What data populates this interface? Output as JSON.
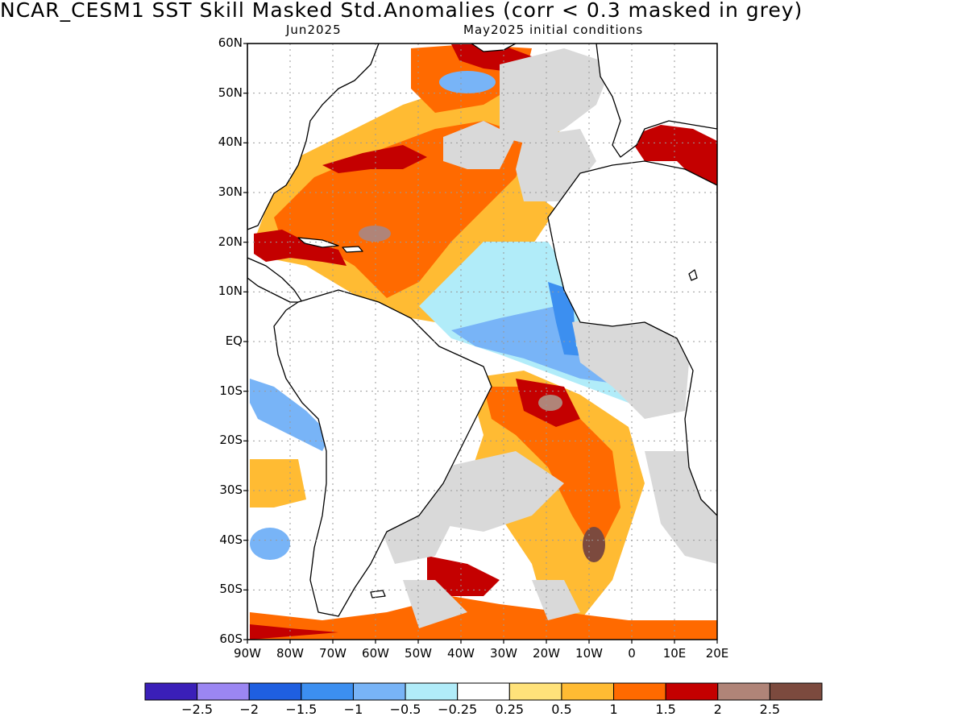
{
  "header": {
    "title": "NCAR_CESM1   SST Skill Masked Std.Anomalies (corr < 0.3 masked in grey)",
    "subtitle_left": "Jun2025",
    "subtitle_right": "May2025 initial conditions"
  },
  "axes": {
    "lat_labels": [
      "60N",
      "50N",
      "40N",
      "30N",
      "20N",
      "10N",
      "EQ",
      "10S",
      "20S",
      "30S",
      "40S",
      "50S",
      "60S"
    ],
    "lon_labels": [
      "90W",
      "80W",
      "70W",
      "60W",
      "50W",
      "40W",
      "30W",
      "20W",
      "10W",
      "0",
      "10E",
      "20E"
    ]
  },
  "colorbar": {
    "colors": [
      "#3a1fb8",
      "#9b86f2",
      "#1f5fe0",
      "#3c8ff0",
      "#78b4f7",
      "#b1ecf9",
      "#ffffff",
      "#ffe27a",
      "#ffbb33",
      "#ff6a00",
      "#c40000",
      "#b08478",
      "#7c4a3e"
    ],
    "labels": [
      "-2.5",
      "-2",
      "-1.5",
      "-1",
      "-0.5",
      "-0.25",
      "0.25",
      "0.5",
      "1",
      "1.5",
      "2",
      "2.5"
    ]
  },
  "mask_color": "#d9d9d9"
}
